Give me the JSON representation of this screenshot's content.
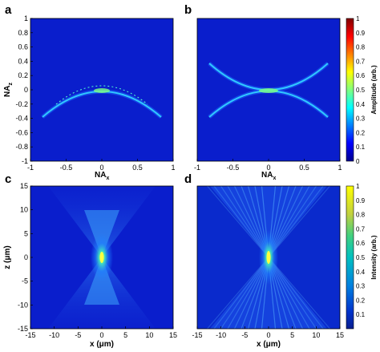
{
  "chart_data": [
    {
      "panel": "a",
      "type": "heatmap",
      "xlabel": "NA",
      "xlabel_sub": "x",
      "ylabel": "NA",
      "ylabel_sub": "z",
      "xlim": [
        -1,
        1
      ],
      "ylim": [
        -1,
        1
      ],
      "xticks": [
        "-1",
        "-0.5",
        "0",
        "0.5",
        "1"
      ],
      "yticks": [
        "1",
        "0.8",
        "0.6",
        "0.4",
        "0.2",
        "0",
        "-0.2",
        "-0.4",
        "-0.6",
        "-0.8",
        "-1"
      ],
      "colormap": "jet",
      "feature": {
        "shape": "arc",
        "nx_range": [
          -0.8,
          0.8
        ],
        "nz_at_center": 0,
        "nz_at_edges": -0.38
      }
    },
    {
      "panel": "b",
      "type": "heatmap",
      "xlabel": "NA",
      "xlabel_sub": "x",
      "xlim": [
        -1,
        1
      ],
      "ylim": [
        -1,
        1
      ],
      "xticks": [
        "-1",
        "-0.5",
        "0",
        "0.5",
        "1"
      ],
      "colormap": "jet",
      "feature": {
        "shape": "two crossing arcs",
        "nx_range": [
          -0.8,
          0.8
        ],
        "nz_at_center": 0,
        "nz_at_edges": [
          0.38,
          -0.38
        ]
      },
      "colorbar": {
        "label": "Amplitude (arb.)",
        "range": [
          0,
          1
        ],
        "ticks": [
          "1",
          "0.9",
          "0.8",
          "0.7",
          "0.6",
          "0.5",
          "0.4",
          "0.3",
          "0.2",
          "0.1",
          "0"
        ]
      }
    },
    {
      "panel": "c",
      "type": "heatmap",
      "xlabel": "x (μm)",
      "ylabel": "z (μm)",
      "xlim": [
        -15,
        15
      ],
      "ylim": [
        -15,
        15
      ],
      "xticks": [
        "-15",
        "-10",
        "-5",
        "0",
        "5",
        "10",
        "15"
      ],
      "yticks": [
        "15",
        "10",
        "5",
        "0",
        "-5",
        "-10",
        "-15"
      ],
      "colormap": "jet",
      "feature": {
        "shape": "focus at origin",
        "focus": [
          0,
          0
        ]
      }
    },
    {
      "panel": "d",
      "type": "heatmap",
      "xlabel": "x (μm)",
      "xlim": [
        -15,
        15
      ],
      "ylim": [
        -15,
        15
      ],
      "xticks": [
        "-15",
        "-10",
        "-5",
        "0",
        "5",
        "10",
        "15"
      ],
      "colormap": "jet",
      "feature": {
        "shape": "focus at origin with interference fringes",
        "focus": [
          0,
          0
        ]
      },
      "colorbar": {
        "label": "Intensity (arb.)",
        "range": [
          0,
          1
        ],
        "ticks": [
          "1",
          "0.9",
          "0.8",
          "0.7",
          "0.6",
          "0.5",
          "0.4",
          "0.3",
          "0.2",
          "0.1"
        ]
      }
    }
  ]
}
